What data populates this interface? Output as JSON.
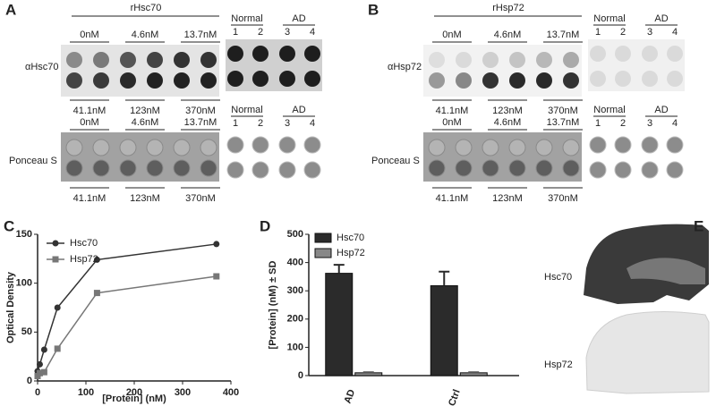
{
  "blots": [
    {
      "label": "A",
      "title": "rHsc70",
      "antibody": "αHsc70",
      "stain": "Ponceau S",
      "top_conc": [
        "0nM",
        "4.6nM",
        "13.7nM"
      ],
      "bottom_conc": [
        "41.1nM",
        "123nM",
        "370nM"
      ],
      "groups": [
        "Normal",
        "AD"
      ],
      "lanes": [
        "1",
        "2",
        "3",
        "4"
      ]
    },
    {
      "label": "B",
      "title": "rHsp72",
      "antibody": "αHsp72",
      "stain": "Ponceau S",
      "top_conc": [
        "0nM",
        "4.6nM",
        "13.7nM"
      ],
      "bottom_conc": [
        "41.1nM",
        "123nM",
        "370nM"
      ],
      "groups": [
        "Normal",
        "AD"
      ],
      "lanes": [
        "1",
        "2",
        "3",
        "4"
      ]
    }
  ],
  "chart_data": [
    {
      "type": "line",
      "label": "C",
      "x_label": "[Protein] (nM)",
      "y_label": "Optical Density",
      "x": [
        0,
        4.6,
        13.7,
        41.1,
        123,
        370
      ],
      "series": [
        {
          "name": "Hsc70",
          "color": "#333333",
          "marker": "circle",
          "values": [
            10,
            17,
            32,
            75,
            124,
            140
          ]
        },
        {
          "name": "Hsp72",
          "color": "#777777",
          "marker": "square",
          "values": [
            5,
            8,
            9,
            33,
            90,
            107
          ]
        }
      ],
      "xlim": [
        0,
        400
      ],
      "xticks": [
        0,
        100,
        200,
        300,
        400
      ],
      "ylim": [
        0,
        150
      ],
      "yticks": [
        0,
        50,
        100,
        150
      ],
      "legend": "top-left"
    },
    {
      "type": "bar",
      "label": "D",
      "y_label": "[Protein] (nM) ± SD",
      "categories": [
        "AD",
        "Ctrl"
      ],
      "series": [
        {
          "name": "Hsc70",
          "color": "#2b2b2b",
          "values": [
            362,
            318
          ],
          "errors": [
            30,
            50
          ]
        },
        {
          "name": "Hsp72",
          "color": "#888888",
          "values": [
            10,
            10
          ],
          "errors": [
            2,
            2
          ]
        }
      ],
      "ylim": [
        0,
        500
      ],
      "yticks": [
        0,
        100,
        200,
        300,
        400,
        500
      ],
      "legend": "top-left"
    }
  ],
  "tissue": {
    "label": "E",
    "rows": [
      "Hsc70",
      "Hsp72"
    ]
  }
}
